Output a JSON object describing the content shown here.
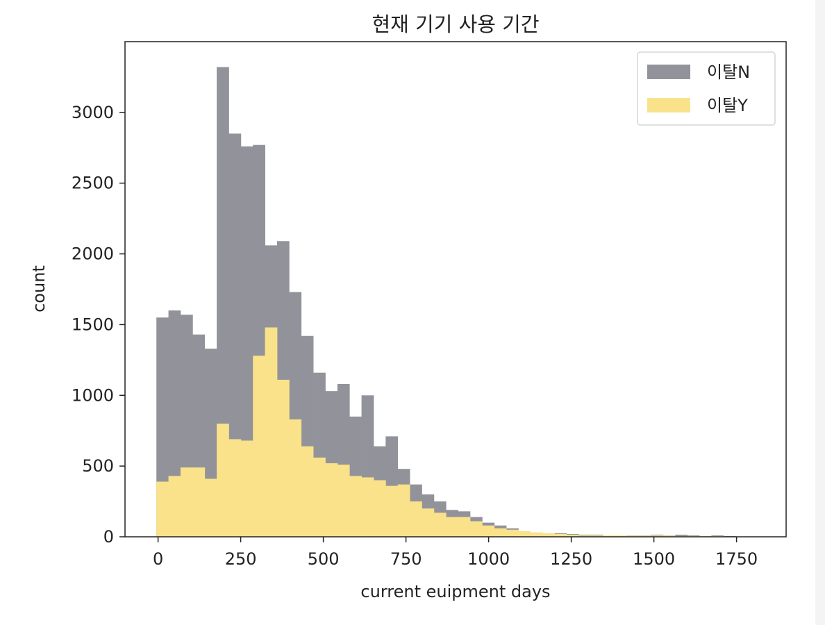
{
  "chart_data": {
    "type": "bar",
    "histogram": true,
    "title": "현재 기기 사용 기간",
    "xlabel": "current euipment days",
    "ylabel": "count",
    "xlim": [
      -100,
      1900
    ],
    "ylim": [
      0,
      3500
    ],
    "xticks": [
      0,
      250,
      500,
      750,
      1000,
      1250,
      1500,
      1750
    ],
    "yticks": [
      0,
      500,
      1000,
      1500,
      2000,
      2500,
      3000
    ],
    "bin_start": -5,
    "bin_width": 36.5,
    "legend": {
      "position": "top-right",
      "entries": [
        "이탈N",
        "이탈Y"
      ]
    },
    "grid": false,
    "colors": {
      "series_n": "#92939a",
      "series_y": "#f9e28a"
    },
    "series": [
      {
        "name": "이탈N",
        "color": "#92939a",
        "values": [
          1550,
          1600,
          1570,
          1430,
          1330,
          3320,
          2850,
          2760,
          2770,
          2060,
          2090,
          1730,
          1420,
          1160,
          1030,
          1080,
          850,
          1000,
          640,
          710,
          480,
          370,
          300,
          250,
          190,
          180,
          140,
          100,
          80,
          60,
          30,
          30,
          25,
          25,
          20,
          15,
          15,
          10,
          10,
          10,
          10,
          15,
          10,
          15,
          10,
          5,
          10,
          5
        ]
      },
      {
        "name": "이탈Y",
        "color": "#f9e28a",
        "values": [
          390,
          430,
          490,
          490,
          410,
          800,
          690,
          680,
          1280,
          1480,
          1110,
          830,
          640,
          560,
          520,
          510,
          430,
          420,
          400,
          360,
          370,
          250,
          200,
          170,
          140,
          140,
          110,
          80,
          60,
          50,
          40,
          30,
          25,
          20,
          15,
          10,
          10,
          10,
          10,
          8,
          8,
          10,
          8,
          5,
          5,
          5,
          5,
          3
        ]
      }
    ]
  }
}
